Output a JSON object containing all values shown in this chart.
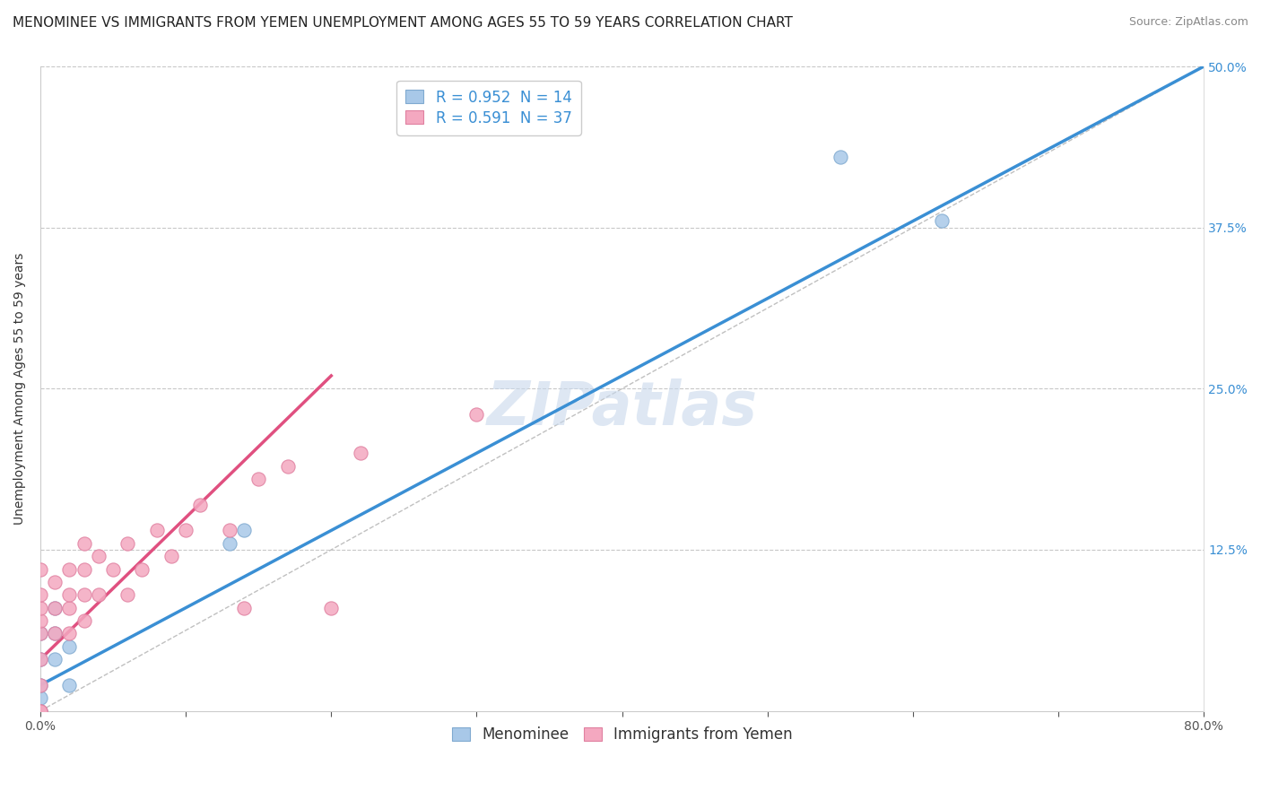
{
  "title": "MENOMINEE VS IMMIGRANTS FROM YEMEN UNEMPLOYMENT AMONG AGES 55 TO 59 YEARS CORRELATION CHART",
  "source": "Source: ZipAtlas.com",
  "ylabel": "Unemployment Among Ages 55 to 59 years",
  "xlim": [
    0.0,
    0.8
  ],
  "ylim": [
    0.0,
    0.5
  ],
  "xtick_positions": [
    0.0,
    0.1,
    0.2,
    0.3,
    0.4,
    0.5,
    0.6,
    0.7,
    0.8
  ],
  "xticklabels": [
    "0.0%",
    "",
    "",
    "",
    "",
    "",
    "",
    "",
    "80.0%"
  ],
  "ytick_positions": [
    0.0,
    0.125,
    0.25,
    0.375,
    0.5
  ],
  "yticklabels": [
    "",
    "12.5%",
    "25.0%",
    "37.5%",
    "50.0%"
  ],
  "watermark": "ZIPatlas",
  "menominee_color": "#a8c8e8",
  "menominee_edge_color": "#80aad0",
  "yemen_color": "#f4a8c0",
  "yemen_edge_color": "#e080a0",
  "menominee_line_color": "#3a8fd4",
  "yemen_line_color": "#e05080",
  "diagonal_color": "#c0c0c0",
  "grid_color": "#c8c8c8",
  "R_menominee": 0.952,
  "N_menominee": 14,
  "R_yemen": 0.591,
  "N_yemen": 37,
  "menominee_line_x0": 0.0,
  "menominee_line_y0": 0.02,
  "menominee_line_x1": 0.8,
  "menominee_line_y1": 0.5,
  "yemen_line_x0": 0.0,
  "yemen_line_y0": 0.04,
  "yemen_line_x1": 0.2,
  "yemen_line_y1": 0.26,
  "menominee_x": [
    0.0,
    0.0,
    0.0,
    0.0,
    0.0,
    0.01,
    0.01,
    0.01,
    0.02,
    0.02,
    0.13,
    0.14,
    0.55,
    0.62
  ],
  "menominee_y": [
    0.0,
    0.01,
    0.02,
    0.04,
    0.06,
    0.04,
    0.06,
    0.08,
    0.02,
    0.05,
    0.13,
    0.14,
    0.43,
    0.38
  ],
  "yemen_x": [
    0.0,
    0.0,
    0.0,
    0.0,
    0.0,
    0.0,
    0.0,
    0.0,
    0.0,
    0.01,
    0.01,
    0.01,
    0.02,
    0.02,
    0.02,
    0.02,
    0.03,
    0.03,
    0.03,
    0.03,
    0.04,
    0.04,
    0.05,
    0.06,
    0.06,
    0.07,
    0.08,
    0.09,
    0.1,
    0.11,
    0.13,
    0.14,
    0.15,
    0.17,
    0.2,
    0.22,
    0.3
  ],
  "yemen_y": [
    0.0,
    0.0,
    0.02,
    0.04,
    0.06,
    0.07,
    0.08,
    0.09,
    0.11,
    0.06,
    0.08,
    0.1,
    0.06,
    0.08,
    0.09,
    0.11,
    0.07,
    0.09,
    0.11,
    0.13,
    0.09,
    0.12,
    0.11,
    0.09,
    0.13,
    0.11,
    0.14,
    0.12,
    0.14,
    0.16,
    0.14,
    0.08,
    0.18,
    0.19,
    0.08,
    0.2,
    0.23
  ],
  "title_fontsize": 11,
  "source_fontsize": 9,
  "label_fontsize": 10,
  "tick_fontsize": 10,
  "legend_fontsize": 12,
  "watermark_fontsize": 48,
  "marker_size": 120,
  "legend_text_color": "#3a8fd4"
}
